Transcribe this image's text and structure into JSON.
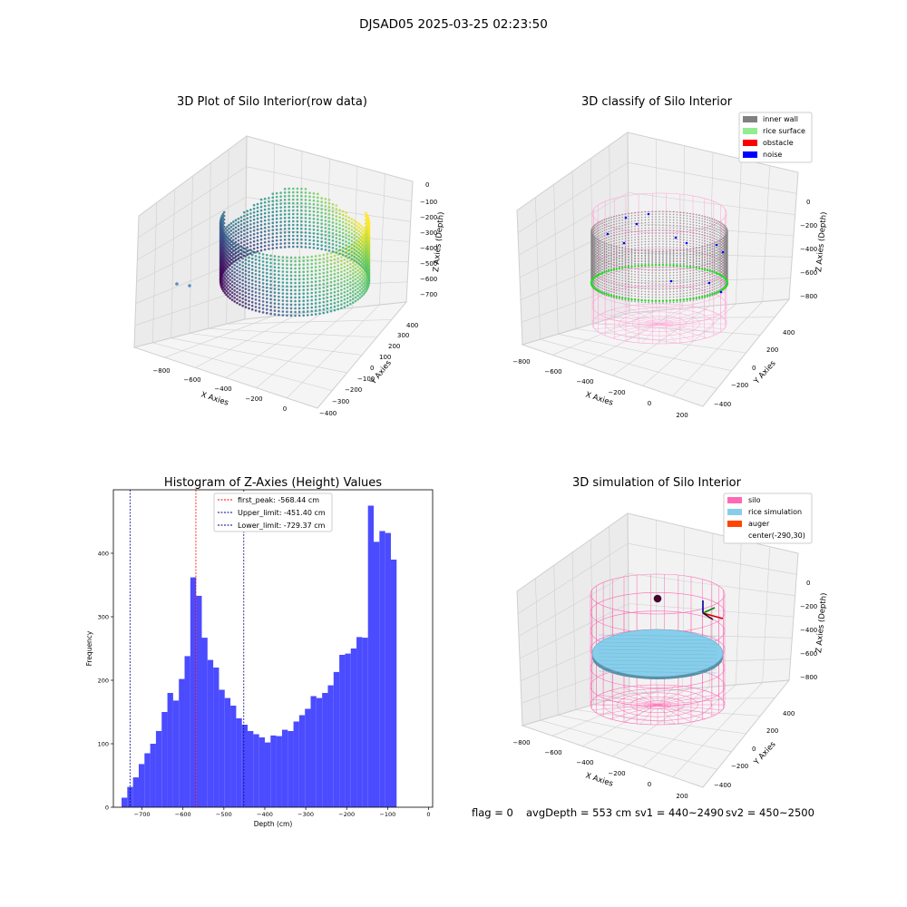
{
  "figure_title": "DJSAD05 2025-03-25 02:23:50",
  "footer": {
    "flag": "flag = 0",
    "avg_depth": "avgDepth = 553 cm",
    "sv1": "sv1 = 440~2490",
    "sv2": "sv2 = 450~2500"
  },
  "colors": {
    "pane_floor": "#f2f2f2",
    "pane_side": "#ebebeb",
    "grid": "#d0d0d0",
    "hist_bar": "#4b4bff",
    "silo": "#ff69b4",
    "rice_simulation": "#87ceeb",
    "auger": "#ff4500",
    "inner_wall": "#808080",
    "rice_surface": "#90ee90",
    "obstacle": "#ff0000",
    "noise": "#0000ff"
  },
  "chart_data": [
    {
      "type": "scatter",
      "subtype": "3d",
      "title": "3D Plot of Silo Interior(row data)",
      "xlabel": "X Axies",
      "ylabel": "Y Axies",
      "zlabel": "Z Axies (Depth)",
      "x_ticks": [
        "−800",
        "−600",
        "−400",
        "−200",
        "0"
      ],
      "y_ticks": [
        "400",
        "300",
        "200",
        "100",
        "0",
        "−100",
        "−200",
        "−300",
        "−400"
      ],
      "z_ticks": [
        "0",
        "−100",
        "−200",
        "−300",
        "−400",
        "−500",
        "−600",
        "−700"
      ],
      "colormap": "viridis",
      "outlier_points": [
        {
          "x": -860,
          "y": 320,
          "z": -560
        },
        {
          "x": -820,
          "y": 330,
          "z": -520
        }
      ]
    },
    {
      "type": "scatter",
      "subtype": "3d",
      "title": "3D classify of Silo Interior",
      "xlabel": "X Axies",
      "ylabel": "Y Axies",
      "zlabel": "Z Axies (Depth)",
      "x_ticks": [
        "−800",
        "−600",
        "−400",
        "−200",
        "0",
        "200"
      ],
      "y_ticks": [
        "400",
        "200",
        "0",
        "−200",
        "−400"
      ],
      "z_ticks": [
        "0",
        "−200",
        "−400",
        "−600",
        "−800"
      ],
      "legend": [
        "inner wall",
        "rice surface",
        "obstacle",
        "noise"
      ],
      "legend_position": "upper-right"
    },
    {
      "type": "bar",
      "subtype": "histogram",
      "title": "Histogram of Z-Axies (Height) Values",
      "xlabel": "Depth (cm)",
      "ylabel": "Frequency",
      "xlim": [
        -770,
        10
      ],
      "ylim": [
        0,
        500
      ],
      "x_ticks": [
        "−700",
        "−600",
        "−500",
        "−400",
        "−300",
        "−200",
        "−100",
        "0"
      ],
      "x_tick_values": [
        -700,
        -600,
        -500,
        -400,
        -300,
        -200,
        -100,
        0
      ],
      "y_ticks": [
        "0",
        "100",
        "200",
        "300",
        "400"
      ],
      "y_tick_values": [
        0,
        100,
        200,
        300,
        400
      ],
      "bin_start": -750,
      "bin_width": 14,
      "values": [
        15,
        32,
        47,
        68,
        85,
        100,
        120,
        150,
        180,
        168,
        202,
        238,
        362,
        333,
        267,
        232,
        220,
        185,
        172,
        160,
        140,
        130,
        120,
        115,
        110,
        102,
        113,
        112,
        122,
        120,
        135,
        145,
        155,
        175,
        172,
        180,
        192,
        213,
        240,
        242,
        250,
        268,
        267,
        475,
        418,
        435,
        432,
        390
      ],
      "vlines": [
        {
          "label": "first_peak: -568.44 cm",
          "x": -568.44,
          "color": "#ff0000"
        },
        {
          "label": "Upper_limit: -451.40 cm",
          "x": -451.4,
          "color": "#00008b"
        },
        {
          "label": "Lower_limit: -729.37 cm",
          "x": -729.37,
          "color": "#00008b"
        }
      ],
      "legend_position": "top-center"
    },
    {
      "type": "scatter",
      "subtype": "3d-surface",
      "title": "3D simulation of Silo Interior",
      "xlabel": "X Axies",
      "ylabel": "Y Axies",
      "zlabel": "Z Axies (Depth)",
      "x_ticks": [
        "−800",
        "−600",
        "−400",
        "−200",
        "0",
        "200"
      ],
      "y_ticks": [
        "400",
        "200",
        "0",
        "−200",
        "−400"
      ],
      "z_ticks": [
        "0",
        "−200",
        "−400",
        "−600",
        "−800"
      ],
      "legend": [
        "silo",
        "rice simulation",
        "auger",
        "center(-290,30)"
      ],
      "legend_position": "upper-right"
    }
  ]
}
